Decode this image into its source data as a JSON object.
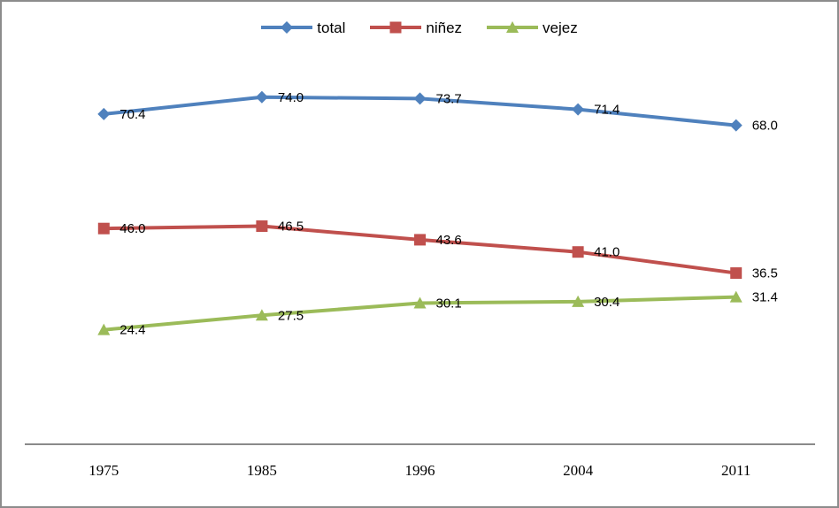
{
  "chart_data": {
    "type": "line",
    "categories": [
      "1975",
      "1985",
      "1996",
      "2004",
      "2011"
    ],
    "series": [
      {
        "name": "total",
        "marker": "diamond",
        "color": "#4F81BD",
        "values": [
          70.4,
          74.0,
          73.7,
          71.4,
          68.0
        ],
        "labels": [
          "70.4",
          "74.0",
          "73.7",
          "71.4",
          "68.0"
        ]
      },
      {
        "name": "niñez",
        "marker": "square",
        "color": "#C0504D",
        "values": [
          46.0,
          46.5,
          43.6,
          41.0,
          36.5
        ],
        "labels": [
          "46.0",
          "46.5",
          "43.6",
          "41.0",
          "36.5"
        ]
      },
      {
        "name": "vejez",
        "marker": "triangle",
        "color": "#9BBB59",
        "values": [
          24.4,
          27.5,
          30.1,
          30.4,
          31.4
        ],
        "labels": [
          "24.4",
          "27.5",
          "30.1",
          "30.4",
          "31.4"
        ]
      }
    ],
    "title": "",
    "xlabel": "",
    "ylabel": "",
    "ylim": [
      0,
      90
    ],
    "grid": false,
    "data_labels": true,
    "legend_position": "top",
    "axis_color": "#8A8A8A",
    "label_color": "#000000",
    "frame_border_color": "#8C8C8C",
    "background_color": "#FFFFFF"
  }
}
